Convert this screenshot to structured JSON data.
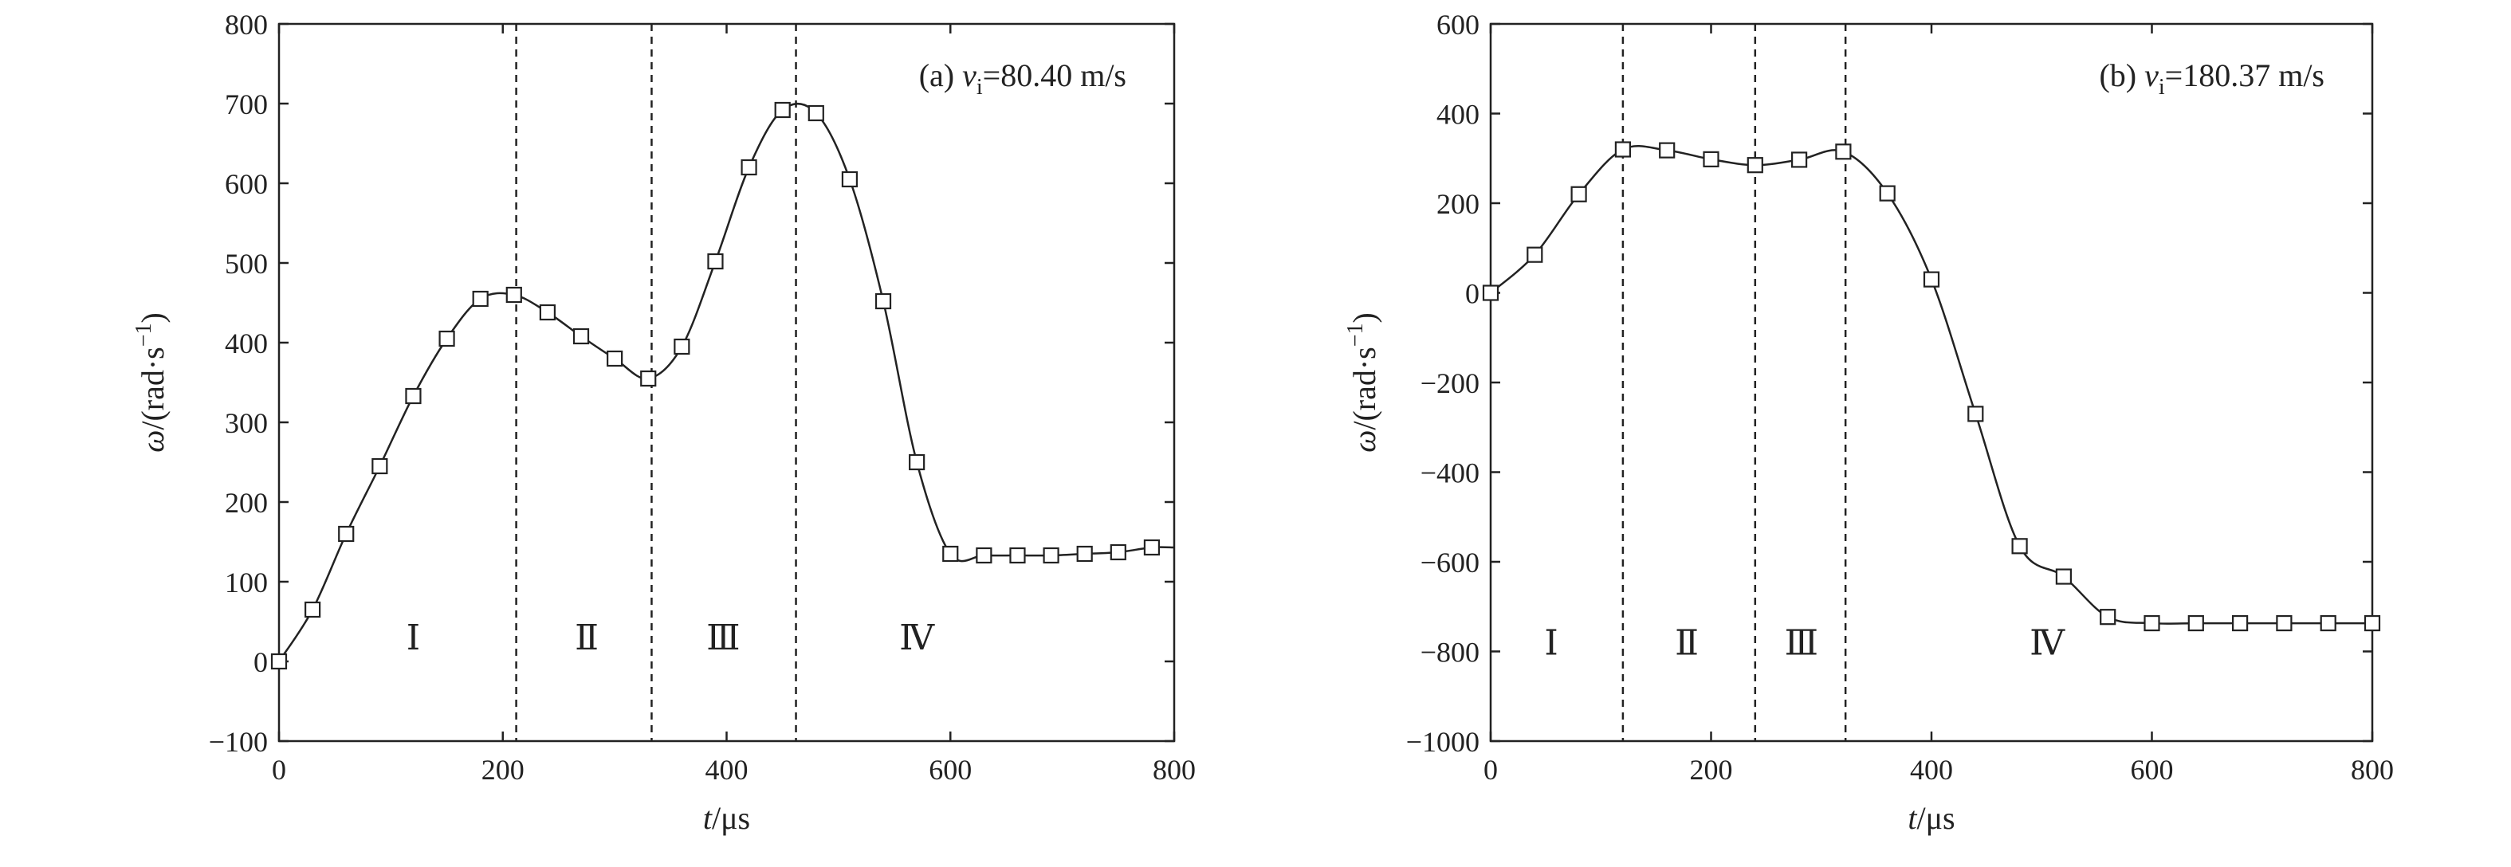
{
  "chart_data": [
    {
      "type": "line",
      "panel": "(a)",
      "annotation": {
        "prefix": "(a) ",
        "var": "v",
        "sub": "i",
        "value": "=80.40 m/s"
      },
      "xlabel": {
        "var": "t",
        "unit": "/μs"
      },
      "ylabel": {
        "var": "ω",
        "unit": "/(rad·s",
        "sup": "−1",
        "close": ")"
      },
      "xlim": [
        0,
        800
      ],
      "ylim": [
        -100,
        800
      ],
      "xticks": [
        0,
        200,
        400,
        600,
        800
      ],
      "yticks": [
        -100,
        0,
        100,
        200,
        300,
        400,
        500,
        600,
        700,
        800
      ],
      "x": [
        0,
        30,
        60,
        90,
        120,
        150,
        180,
        210,
        240,
        270,
        300,
        330,
        360,
        390,
        420,
        450,
        480,
        510,
        540,
        570,
        600,
        630,
        660,
        690,
        720,
        750,
        780
      ],
      "y": [
        0,
        65,
        160,
        245,
        333,
        405,
        455,
        460,
        438,
        408,
        380,
        355,
        395,
        502,
        620,
        692,
        688,
        605,
        452,
        250,
        135,
        133,
        133,
        133,
        135,
        137,
        143
      ],
      "curve_end_x": 800,
      "curve_end_y": 143,
      "phase_lines": [
        212,
        333,
        462
      ],
      "regions": [
        {
          "label": "Ⅰ",
          "x": 120,
          "y": 30
        },
        {
          "label": "Ⅱ",
          "x": 275,
          "y": 30
        },
        {
          "label": "Ⅲ",
          "x": 397,
          "y": 30
        },
        {
          "label": "Ⅳ",
          "x": 570,
          "y": 30
        }
      ]
    },
    {
      "type": "line",
      "panel": "(b)",
      "annotation": {
        "prefix": "(b) ",
        "var": "v",
        "sub": "i",
        "value": "=180.37 m/s"
      },
      "xlabel": {
        "var": "t",
        "unit": "/μs"
      },
      "ylabel": {
        "var": "ω",
        "unit": "/(rad·s",
        "sup": "−1",
        "close": ")"
      },
      "xlim": [
        0,
        800
      ],
      "ylim": [
        -1000,
        600
      ],
      "xticks": [
        0,
        200,
        400,
        600,
        800
      ],
      "yticks": [
        -1000,
        -800,
        -600,
        -400,
        -200,
        0,
        200,
        400,
        600
      ],
      "x": [
        0,
        40,
        80,
        120,
        160,
        200,
        240,
        280,
        320,
        360,
        400,
        440,
        480,
        520,
        560,
        600,
        640,
        680,
        720,
        760,
        800
      ],
      "y": [
        0,
        85,
        220,
        320,
        318,
        298,
        285,
        297,
        315,
        222,
        30,
        -270,
        -565,
        -633,
        -723,
        -737,
        -737,
        -737,
        -737,
        -737,
        -737
      ],
      "phase_lines": [
        120,
        240,
        322
      ],
      "regions": [
        {
          "label": "Ⅰ",
          "x": 55,
          "y": -780
        },
        {
          "label": "Ⅱ",
          "x": 178,
          "y": -780
        },
        {
          "label": "Ⅲ",
          "x": 282,
          "y": -780
        },
        {
          "label": "Ⅳ",
          "x": 505,
          "y": -780
        }
      ]
    }
  ]
}
